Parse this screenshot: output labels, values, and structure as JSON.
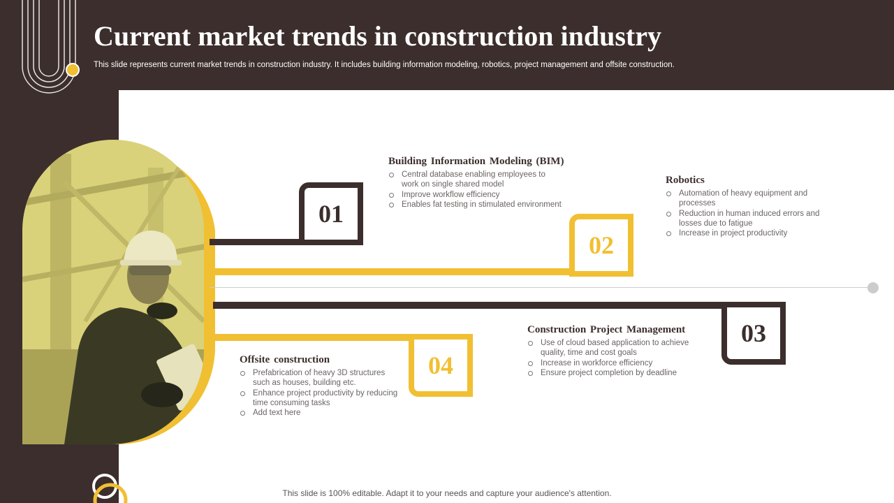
{
  "slide": {
    "title": "Current market trends in construction industry",
    "subtitle": "This slide represents current market trends in construction industry. It includes building information modeling, robotics, project management and offsite construction.",
    "footer": "This slide is 100% editable. Adapt it to your needs and capture your audience's attention."
  },
  "colors": {
    "dark": "#3b2e2c",
    "gold": "#f1bf32",
    "white": "#ffffff",
    "timeline_grey": "#cccccc"
  },
  "photo": {
    "description_icon": "construction-worker-photo"
  },
  "steps": [
    {
      "number": "01",
      "heading": "Building  Information  Modeling (BIM)",
      "bullets": [
        "Central database enabling employees to work on single shared model",
        "Improve workflow efficiency",
        "Enables fat testing in stimulated environment"
      ]
    },
    {
      "number": "02",
      "heading": "Robotics",
      "bullets": [
        "Automation of heavy  equipment and processes",
        "Reduction in human induced errors and losses due to fatigue",
        "Increase in project productivity"
      ]
    },
    {
      "number": "03",
      "heading": "Construction  Project  Management",
      "bullets": [
        "Use of cloud based application to achieve quality, time and cost goals",
        "Increase in workforce efficiency",
        "Ensure project completion by deadline"
      ]
    },
    {
      "number": "04",
      "heading": "Offsite construction",
      "bullets": [
        "Prefabrication of heavy 3D structures such as houses, building etc.",
        "Enhance project productivity by reducing time consuming tasks",
        "Add text here"
      ]
    }
  ]
}
